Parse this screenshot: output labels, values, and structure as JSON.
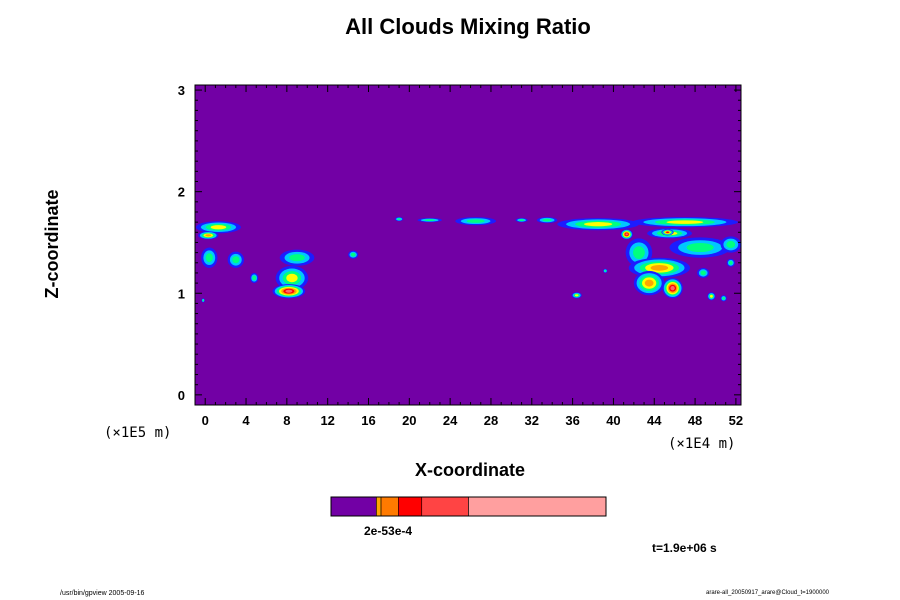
{
  "chart_data": {
    "type": "heatmap",
    "title": "All Clouds Mixing Ratio",
    "xlabel": "X-coordinate",
    "ylabel": "Z-coordinate",
    "x_scale_label": "(×1E4 m)",
    "y_scale_label": "(×1E5 m)",
    "xlim": [
      -1,
      52.5
    ],
    "ylim": [
      -0.1,
      3.05
    ],
    "x_ticks": [
      0,
      4,
      8,
      12,
      16,
      20,
      24,
      28,
      32,
      36,
      40,
      44,
      48,
      52
    ],
    "y_ticks": [
      0,
      1,
      2,
      3
    ],
    "background_color": "#7200a5",
    "level_colors": [
      "#7200a5",
      "#1c1cff",
      "#00c8ff",
      "#00ff7f",
      "#ffff00",
      "#ffa500",
      "#ff0000",
      "#ff6868",
      "#ff9f9f"
    ],
    "colorbar": {
      "segments": [
        {
          "color": "#7200a5",
          "from": 0.0,
          "to": 0.165
        },
        {
          "color": "#ffa500",
          "from": 0.165,
          "to": 0.182
        },
        {
          "color": "#ff7a00",
          "from": 0.182,
          "to": 0.245
        },
        {
          "color": "#ff0000",
          "from": 0.245,
          "to": 0.33
        },
        {
          "color": "#ff4444",
          "from": 0.33,
          "to": 0.5
        },
        {
          "color": "#ff9f9f",
          "from": 0.5,
          "to": 1.0
        }
      ],
      "tick_label": "2e-53e-4"
    },
    "clouds": [
      {
        "x": 1.3,
        "z": 1.65,
        "rx": 2.2,
        "rz": 0.06,
        "peak": 4
      },
      {
        "x": 0.3,
        "z": 1.57,
        "rx": 1.0,
        "rz": 0.04,
        "peak": 5
      },
      {
        "x": 0.4,
        "z": 1.35,
        "rx": 0.8,
        "rz": 0.1,
        "peak": 3
      },
      {
        "x": 3.0,
        "z": 1.33,
        "rx": 0.8,
        "rz": 0.08,
        "peak": 3
      },
      {
        "x": 4.8,
        "z": 1.15,
        "rx": 0.4,
        "rz": 0.05,
        "peak": 3
      },
      {
        "x": 9.0,
        "z": 1.35,
        "rx": 1.7,
        "rz": 0.08,
        "peak": 3
      },
      {
        "x": 8.5,
        "z": 1.15,
        "rx": 1.6,
        "rz": 0.12,
        "peak": 4
      },
      {
        "x": 8.2,
        "z": 1.02,
        "rx": 1.6,
        "rz": 0.07,
        "peak": 7
      },
      {
        "x": 14.5,
        "z": 1.38,
        "rx": 0.5,
        "rz": 0.04,
        "peak": 3
      },
      {
        "x": 19.0,
        "z": 1.73,
        "rx": 0.4,
        "rz": 0.02,
        "peak": 3
      },
      {
        "x": 22.0,
        "z": 1.72,
        "rx": 1.2,
        "rz": 0.02,
        "peak": 3
      },
      {
        "x": 26.5,
        "z": 1.71,
        "rx": 2.0,
        "rz": 0.04,
        "peak": 3
      },
      {
        "x": 31.0,
        "z": 1.72,
        "rx": 0.6,
        "rz": 0.02,
        "peak": 3
      },
      {
        "x": 33.5,
        "z": 1.72,
        "rx": 1.0,
        "rz": 0.03,
        "peak": 3
      },
      {
        "x": 38.5,
        "z": 1.68,
        "rx": 4.0,
        "rz": 0.06,
        "peak": 4
      },
      {
        "x": 47.0,
        "z": 1.7,
        "rx": 5.2,
        "rz": 0.05,
        "peak": 4
      },
      {
        "x": 45.5,
        "z": 1.59,
        "rx": 2.2,
        "rz": 0.05,
        "peak": 4
      },
      {
        "x": 41.3,
        "z": 1.58,
        "rx": 0.6,
        "rz": 0.05,
        "peak": 7
      },
      {
        "x": 45.3,
        "z": 1.6,
        "rx": 0.6,
        "rz": 0.03,
        "peak": 6
      },
      {
        "x": 42.5,
        "z": 1.4,
        "rx": 1.3,
        "rz": 0.14,
        "peak": 3
      },
      {
        "x": 48.5,
        "z": 1.45,
        "rx": 3.0,
        "rz": 0.1,
        "peak": 3
      },
      {
        "x": 51.5,
        "z": 1.48,
        "rx": 1.0,
        "rz": 0.08,
        "peak": 3
      },
      {
        "x": 44.5,
        "z": 1.25,
        "rx": 3.0,
        "rz": 0.1,
        "peak": 5
      },
      {
        "x": 43.5,
        "z": 1.1,
        "rx": 1.5,
        "rz": 0.12,
        "peak": 5
      },
      {
        "x": 45.8,
        "z": 1.05,
        "rx": 1.0,
        "rz": 0.1,
        "peak": 7
      },
      {
        "x": 48.8,
        "z": 1.2,
        "rx": 0.6,
        "rz": 0.05,
        "peak": 3
      },
      {
        "x": 49.6,
        "z": 0.97,
        "rx": 0.4,
        "rz": 0.04,
        "peak": 4
      },
      {
        "x": 50.8,
        "z": 0.95,
        "rx": 0.3,
        "rz": 0.03,
        "peak": 3
      },
      {
        "x": 51.5,
        "z": 1.3,
        "rx": 0.4,
        "rz": 0.04,
        "peak": 3
      },
      {
        "x": 36.4,
        "z": 0.98,
        "rx": 0.5,
        "rz": 0.03,
        "peak": 4
      },
      {
        "x": 39.2,
        "z": 1.22,
        "rx": 0.2,
        "rz": 0.02,
        "peak": 3
      },
      {
        "x": -0.2,
        "z": 0.93,
        "rx": 0.15,
        "rz": 0.02,
        "peak": 3
      }
    ]
  },
  "annotations": {
    "time": "t=1.9e+06 s",
    "footer_left": "/usr/bin/gpview 2005-09-16",
    "footer_right": "arare-all_20050917_arare@Cloud_t=1900000"
  }
}
